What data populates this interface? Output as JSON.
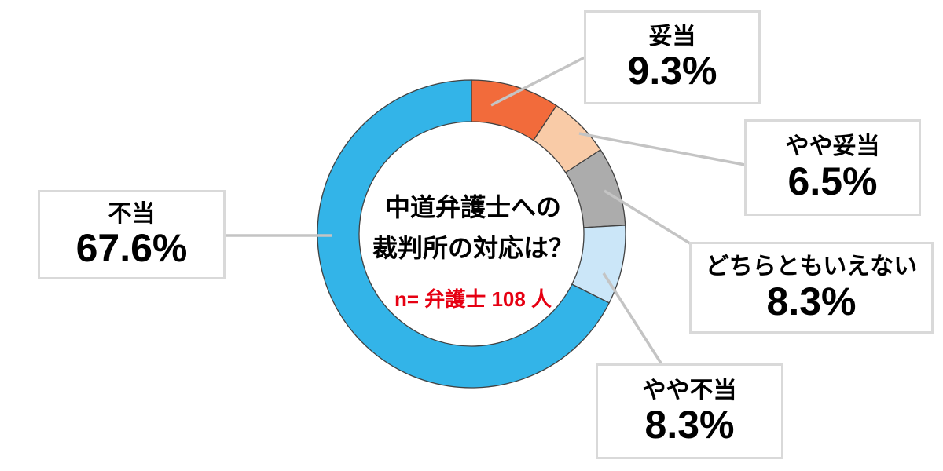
{
  "chart_data": {
    "type": "donut",
    "title_lines": [
      "中道弁護士への",
      "裁判所の対応は？"
    ],
    "note": "n= 弁護士 108 人",
    "note_color": "#e60012",
    "segments": [
      {
        "label": "妥当",
        "value": 9.3,
        "percent_label": "9.3%",
        "color": "#F26B3B"
      },
      {
        "label": "やや妥当",
        "value": 6.5,
        "percent_label": "6.5%",
        "color": "#F9CBA7"
      },
      {
        "label": "どちらともいえない",
        "value": 8.3,
        "percent_label": "8.3%",
        "color": "#ACACAC"
      },
      {
        "label": "やや不当",
        "value": 8.3,
        "percent_label": "8.3%",
        "color": "#CBE6F8"
      },
      {
        "label": "不当",
        "value": 67.6,
        "percent_label": "67.6%",
        "color": "#33B4E8"
      }
    ],
    "start_angle_deg": 0,
    "direction": "clockwise",
    "slice_border_color": "#414141",
    "leader_line_color": "#c4c4c4",
    "box_border_color": "#d9d9d9"
  }
}
